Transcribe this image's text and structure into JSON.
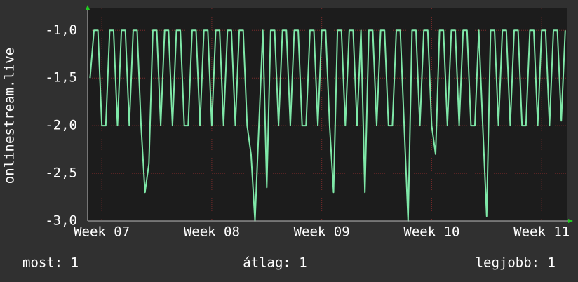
{
  "chart_data": {
    "type": "line",
    "y_label": "onlinestream.live",
    "x": [
      -0.75,
      -0.5,
      -0.25,
      0,
      0.25,
      0.5,
      0.75,
      1,
      1.25,
      1.5,
      1.75,
      2,
      2.25,
      2.5,
      2.75,
      3,
      3.25,
      3.5,
      3.75,
      4,
      4.25,
      4.5,
      4.75,
      5,
      5.25,
      5.5,
      5.75,
      6,
      6.25,
      6.5,
      6.75,
      7,
      7.25,
      7.5,
      7.75,
      8,
      8.25,
      8.5,
      8.75,
      9,
      9.25,
      9.5,
      9.75,
      10,
      10.25,
      10.5,
      10.75,
      11,
      11.25,
      11.5,
      11.75,
      12,
      12.25,
      12.5,
      12.75,
      13,
      13.25,
      13.5,
      13.75,
      14,
      14.25,
      14.5,
      14.75,
      15,
      15.25,
      15.5,
      15.75,
      16,
      16.25,
      16.5,
      16.75,
      17,
      17.25,
      17.5,
      17.75,
      18,
      18.25,
      18.5,
      18.75,
      19,
      19.25,
      19.5,
      19.75,
      20,
      20.25,
      20.5,
      20.75,
      21,
      21.25,
      21.5,
      21.75,
      22,
      22.25,
      22.5,
      22.75,
      23,
      23.25,
      23.5,
      23.75,
      24,
      24.25,
      24.5,
      24.75,
      25,
      25.25,
      25.5,
      25.75,
      26,
      26.25,
      26.5,
      26.75,
      27,
      27.25,
      27.5,
      27.75,
      28,
      28.25,
      28.5,
      28.75,
      29,
      29.25,
      29.5
    ],
    "series": [
      {
        "name": "onlinestream.live",
        "color": "#7fe8a8",
        "values": [
          -1.5,
          -1,
          -1,
          -2,
          -2,
          -1,
          -1,
          -2,
          -1,
          -1,
          -2,
          -1,
          -1,
          -2,
          -2.7,
          -2.4,
          -1,
          -1,
          -2,
          -1,
          -1,
          -2,
          -1,
          -1,
          -2,
          -2,
          -1,
          -1,
          -2,
          -1,
          -1,
          -2,
          -1,
          -1,
          -2,
          -1,
          -1,
          -2,
          -1,
          -1,
          -2,
          -2.3,
          -3,
          -2,
          -1,
          -2.65,
          -1,
          -1,
          -2,
          -1,
          -1,
          -2,
          -1,
          -1,
          -2,
          -2,
          -1,
          -1,
          -2,
          -1,
          -1,
          -2,
          -2.7,
          -1,
          -1,
          -2,
          -1,
          -1,
          -2,
          -1,
          -2.7,
          -1,
          -1,
          -2,
          -1,
          -1,
          -2,
          -2,
          -1,
          -1,
          -2,
          -3,
          -1,
          -1,
          -2,
          -1,
          -1,
          -2,
          -2.3,
          -1,
          -1,
          -2,
          -1,
          -1,
          -2,
          -1,
          -1,
          -2,
          -2,
          -1,
          -2,
          -2.95,
          -1,
          -1,
          -2,
          -1,
          -1,
          -2,
          -1,
          -1,
          -2,
          -2,
          -1,
          -1,
          -2,
          -1,
          -1,
          -2,
          -1,
          -1,
          -1.95,
          -1
        ]
      }
    ],
    "xlim": [
      -0.9,
      29.6
    ],
    "xticks": [
      {
        "value": 0,
        "label": "Week 07"
      },
      {
        "value": 7,
        "label": "Week 08"
      },
      {
        "value": 14,
        "label": "Week 09"
      },
      {
        "value": 21,
        "label": "Week 10"
      },
      {
        "value": 28,
        "label": "Week 11"
      }
    ],
    "ylim": [
      -3,
      -0.77
    ],
    "yticks": [
      {
        "value": -3,
        "label": "-3,0"
      },
      {
        "value": -2.5,
        "label": "-2,5"
      },
      {
        "value": -2,
        "label": "-2,0"
      },
      {
        "value": -1.5,
        "label": "-1,5"
      },
      {
        "value": -1,
        "label": "-1,0"
      }
    ],
    "grid": true
  },
  "footer": {
    "current": "most: 1",
    "average": "átlag: 1",
    "best": "legjobb: 1"
  }
}
